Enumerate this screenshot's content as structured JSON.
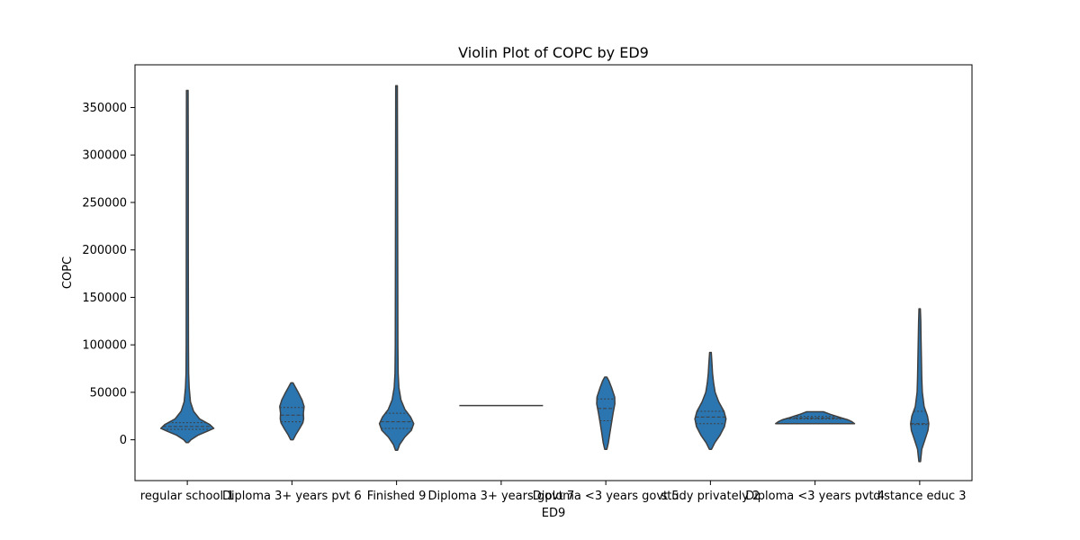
{
  "chart_data": {
    "type": "violin",
    "title": "Violin Plot of COPC by ED9",
    "xlabel": "ED9",
    "ylabel": "COPC",
    "ylim": [
      -43000,
      395000
    ],
    "yticks": [
      0,
      50000,
      100000,
      150000,
      200000,
      250000,
      300000,
      350000
    ],
    "color": "#2b75b0",
    "edge_color": "#3f3f3f",
    "inner": "quartile",
    "categories": [
      "regular school 1",
      "Diploma 3+ years pvt 6",
      "Finished 9",
      "Diploma 3+ years govt 7",
      "Diploma <3 years govt 5",
      "study privately 2",
      "Diploma <3 years pvt 4",
      "distance educ 3"
    ],
    "violins": [
      {
        "min": -3000,
        "max": 368000,
        "q1": 11000,
        "median": 14000,
        "q3": 18000,
        "profile": [
          [
            -3000,
            0.02
          ],
          [
            0,
            0.12
          ],
          [
            5000,
            0.4
          ],
          [
            9000,
            0.75
          ],
          [
            12000,
            1.0
          ],
          [
            16000,
            0.85
          ],
          [
            22000,
            0.45
          ],
          [
            30000,
            0.22
          ],
          [
            40000,
            0.1
          ],
          [
            55000,
            0.05
          ],
          [
            70000,
            0.03
          ],
          [
            100000,
            0.022
          ],
          [
            200000,
            0.018
          ],
          [
            300000,
            0.015
          ],
          [
            368000,
            0.01
          ]
        ]
      },
      {
        "min": 0,
        "max": 60000,
        "q1": 19000,
        "median": 26000,
        "q3": 34000,
        "profile": [
          [
            0,
            0.03
          ],
          [
            5000,
            0.12
          ],
          [
            12000,
            0.28
          ],
          [
            18000,
            0.4
          ],
          [
            22000,
            0.43
          ],
          [
            28000,
            0.42
          ],
          [
            35000,
            0.45
          ],
          [
            42000,
            0.37
          ],
          [
            50000,
            0.22
          ],
          [
            56000,
            0.1
          ],
          [
            60000,
            0.02
          ]
        ]
      },
      {
        "min": -11000,
        "max": 373000,
        "q1": 12000,
        "median": 19000,
        "q3": 28000,
        "profile": [
          [
            -11000,
            0.02
          ],
          [
            -5000,
            0.1
          ],
          [
            3000,
            0.3
          ],
          [
            10000,
            0.55
          ],
          [
            17000,
            0.64
          ],
          [
            24000,
            0.52
          ],
          [
            32000,
            0.3
          ],
          [
            42000,
            0.15
          ],
          [
            55000,
            0.07
          ],
          [
            70000,
            0.04
          ],
          [
            100000,
            0.03
          ],
          [
            200000,
            0.022
          ],
          [
            300000,
            0.016
          ],
          [
            373000,
            0.01
          ]
        ]
      },
      {
        "min": 36000,
        "max": 36000,
        "q1": 36000,
        "median": 36000,
        "q3": 36000,
        "profile": [
          [
            36000,
            2.9
          ],
          [
            36000,
            2.9
          ]
        ]
      },
      {
        "min": -10000,
        "max": 66000,
        "q1": 20000,
        "median": 33000,
        "q3": 43000,
        "profile": [
          [
            -10000,
            0.02
          ],
          [
            -3000,
            0.08
          ],
          [
            8000,
            0.14
          ],
          [
            18000,
            0.2
          ],
          [
            28000,
            0.26
          ],
          [
            38000,
            0.33
          ],
          [
            45000,
            0.32
          ],
          [
            55000,
            0.2
          ],
          [
            62000,
            0.1
          ],
          [
            66000,
            0.02
          ]
        ]
      },
      {
        "min": -10000,
        "max": 92000,
        "q1": 17000,
        "median": 24000,
        "q3": 30000,
        "profile": [
          [
            -10000,
            0.02
          ],
          [
            -3000,
            0.15
          ],
          [
            5000,
            0.35
          ],
          [
            14000,
            0.52
          ],
          [
            22000,
            0.58
          ],
          [
            30000,
            0.5
          ],
          [
            40000,
            0.3
          ],
          [
            50000,
            0.16
          ],
          [
            60000,
            0.1
          ],
          [
            70000,
            0.06
          ],
          [
            80000,
            0.04
          ],
          [
            92000,
            0.01
          ]
        ]
      },
      {
        "min": 17000,
        "max": 29500,
        "q1": 22000,
        "median": 23000,
        "q3": 24500,
        "profile": [
          [
            17000,
            1.55
          ],
          [
            19000,
            1.4
          ],
          [
            21000,
            1.25
          ],
          [
            23000,
            1.0
          ],
          [
            25000,
            0.78
          ],
          [
            27000,
            0.55
          ],
          [
            29500,
            0.3
          ]
        ]
      },
      {
        "min": -23000,
        "max": 138000,
        "q1": 16000,
        "median": 17000,
        "q3": 30000,
        "profile": [
          [
            -23000,
            0.01
          ],
          [
            -10000,
            0.06
          ],
          [
            0,
            0.18
          ],
          [
            10000,
            0.3
          ],
          [
            17000,
            0.33
          ],
          [
            25000,
            0.28
          ],
          [
            35000,
            0.15
          ],
          [
            50000,
            0.08
          ],
          [
            65000,
            0.06
          ],
          [
            80000,
            0.05
          ],
          [
            95000,
            0.04
          ],
          [
            110000,
            0.03
          ],
          [
            125000,
            0.02
          ],
          [
            138000,
            0.005
          ]
        ]
      }
    ]
  }
}
